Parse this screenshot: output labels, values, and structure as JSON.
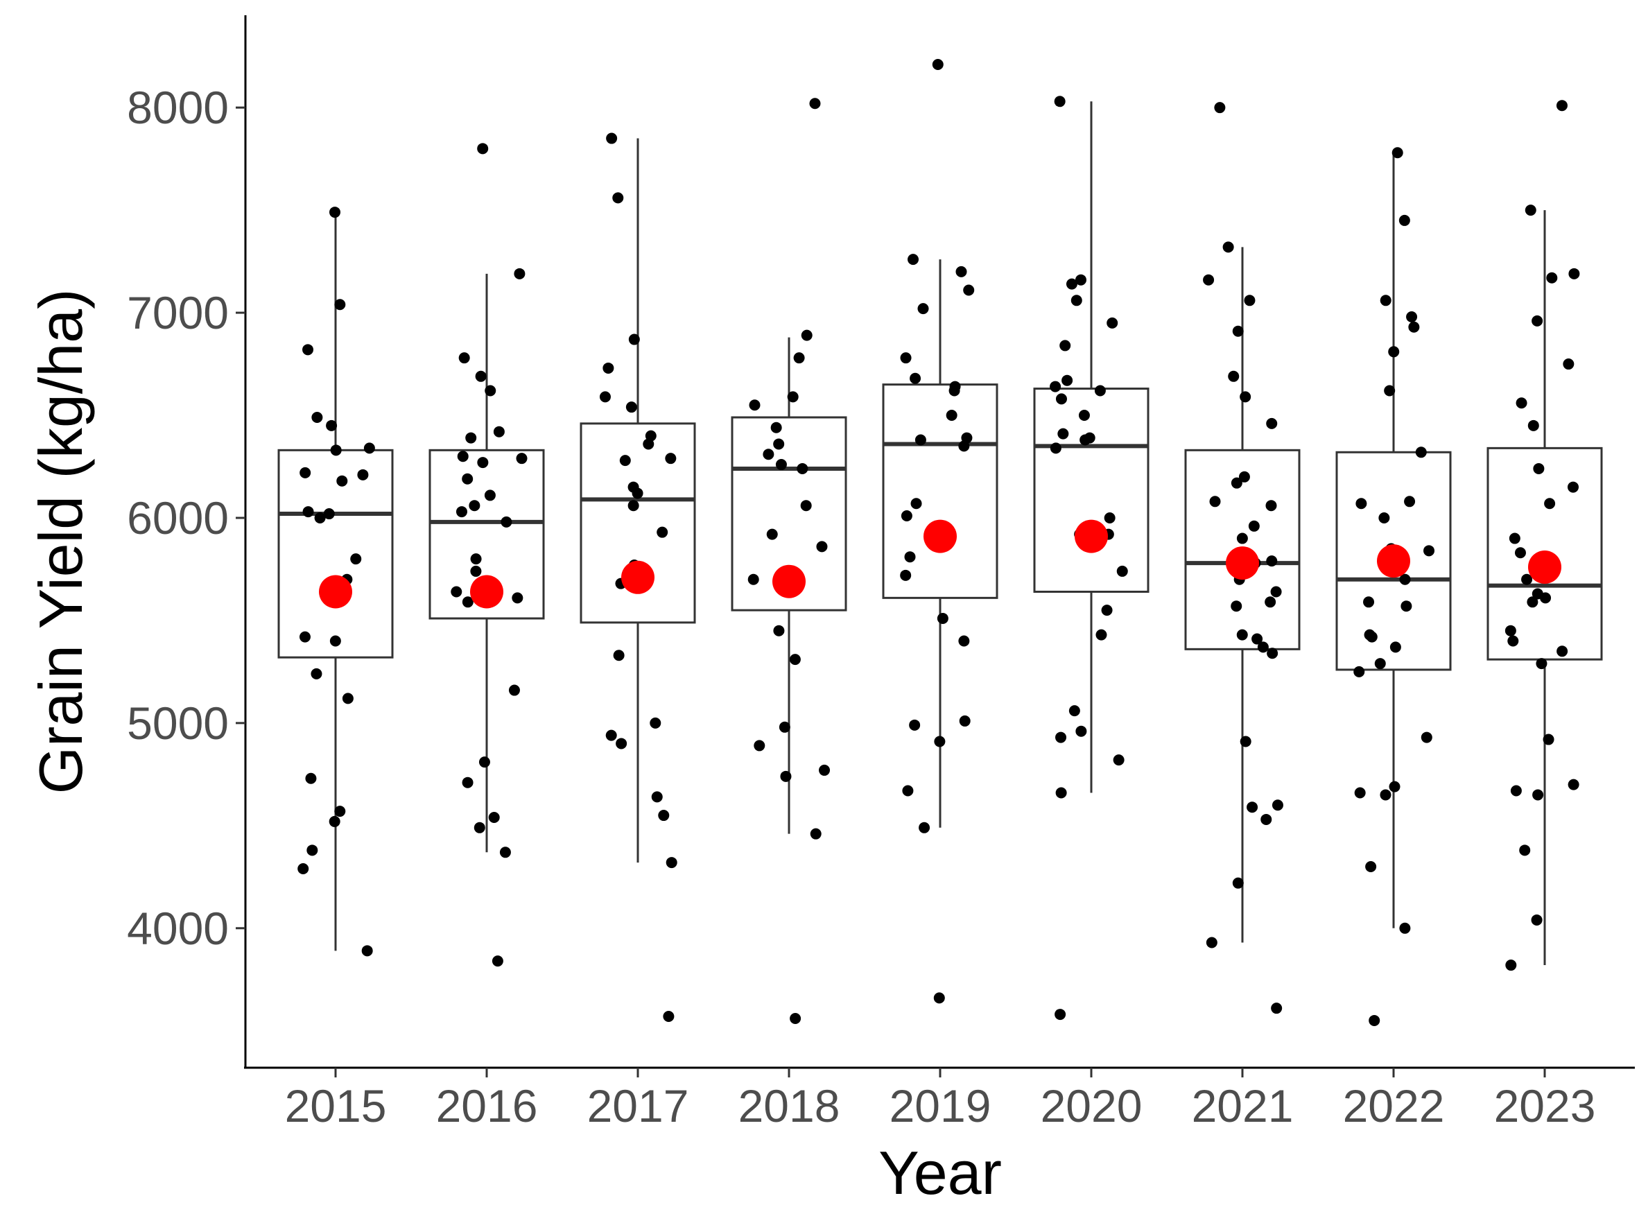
{
  "chart_data": {
    "type": "boxplot",
    "xlabel": "Year",
    "ylabel": "Grain Yield (kg/ha)",
    "ylim": [
      3320,
      8450
    ],
    "yticks": [
      4000,
      5000,
      6000,
      7000,
      8000
    ],
    "grid": false,
    "legend": "none",
    "colors": {
      "points": "#000000",
      "mean": "#ff0000",
      "box": "#333333"
    },
    "categories": [
      "2015",
      "2016",
      "2017",
      "2018",
      "2019",
      "2020",
      "2021",
      "2022",
      "2023"
    ],
    "boxes": [
      {
        "year": "2015",
        "lower_whisker": 3890,
        "q1": 5320,
        "median": 6020,
        "q3": 6330,
        "upper_whisker": 7490,
        "mean": 5640
      },
      {
        "year": "2016",
        "lower_whisker": 4370,
        "q1": 5510,
        "median": 5980,
        "q3": 6330,
        "upper_whisker": 7190,
        "mean": 5640
      },
      {
        "year": "2017",
        "lower_whisker": 4320,
        "q1": 5490,
        "median": 6090,
        "q3": 6460,
        "upper_whisker": 7850,
        "mean": 5710
      },
      {
        "year": "2018",
        "lower_whisker": 4460,
        "q1": 5550,
        "median": 6240,
        "q3": 6490,
        "upper_whisker": 6880,
        "mean": 5690
      },
      {
        "year": "2019",
        "lower_whisker": 4490,
        "q1": 5610,
        "median": 6360,
        "q3": 6650,
        "upper_whisker": 7260,
        "mean": 5910
      },
      {
        "year": "2020",
        "lower_whisker": 4660,
        "q1": 5640,
        "median": 6350,
        "q3": 6630,
        "upper_whisker": 8030,
        "mean": 5910
      },
      {
        "year": "2021",
        "lower_whisker": 3930,
        "q1": 5360,
        "median": 5780,
        "q3": 6330,
        "upper_whisker": 7320,
        "mean": 5780
      },
      {
        "year": "2022",
        "lower_whisker": 4000,
        "q1": 5260,
        "median": 5700,
        "q3": 6320,
        "upper_whisker": 7780,
        "mean": 5790
      },
      {
        "year": "2023",
        "lower_whisker": 3820,
        "q1": 5310,
        "median": 5670,
        "q3": 6340,
        "upper_whisker": 7500,
        "mean": 5760
      }
    ],
    "points": [
      {
        "year": "2015",
        "values": [
          7490,
          7040,
          6820,
          6490,
          6450,
          6330,
          6220,
          6210,
          6180,
          6020,
          6000,
          5800,
          5700,
          5420,
          5400,
          5240,
          5120,
          4730,
          4570,
          4520,
          4380,
          4290,
          3890,
          6340,
          6030
        ]
      },
      {
        "year": "2016",
        "values": [
          7800,
          7190,
          6780,
          6690,
          6620,
          6420,
          6390,
          6300,
          6290,
          6270,
          6190,
          6110,
          6060,
          6030,
          5980,
          5800,
          5740,
          5640,
          5610,
          5590,
          5160,
          4810,
          4710,
          4540,
          4490,
          4370,
          3840
        ]
      },
      {
        "year": "2017",
        "values": [
          7850,
          7560,
          6870,
          6730,
          6590,
          6540,
          6400,
          6360,
          6290,
          6280,
          6150,
          6120,
          6060,
          5930,
          5770,
          5700,
          5680,
          5330,
          5000,
          4940,
          4900,
          4640,
          4550,
          4320,
          3570
        ]
      },
      {
        "year": "2018",
        "values": [
          8020,
          6890,
          6780,
          6590,
          6550,
          6440,
          6360,
          6310,
          6260,
          6240,
          6060,
          5920,
          5860,
          5700,
          5450,
          5310,
          4980,
          4890,
          4770,
          4740,
          4460,
          3560
        ]
      },
      {
        "year": "2019",
        "values": [
          8210,
          7260,
          7200,
          7110,
          7020,
          6780,
          6680,
          6640,
          6620,
          6500,
          6390,
          6380,
          6350,
          6070,
          6010,
          5810,
          5720,
          5510,
          5400,
          5010,
          4990,
          4910,
          4670,
          4490,
          3660
        ]
      },
      {
        "year": "2020",
        "values": [
          8030,
          7160,
          7140,
          7060,
          6950,
          6840,
          6670,
          6640,
          6620,
          6580,
          6500,
          6410,
          6390,
          6380,
          6340,
          6000,
          5940,
          5920,
          5920,
          5740,
          5550,
          5430,
          5060,
          4960,
          4930,
          4820,
          4660,
          3580
        ]
      },
      {
        "year": "2021",
        "values": [
          8000,
          7320,
          7160,
          7060,
          6910,
          6690,
          6590,
          6460,
          6200,
          6170,
          6080,
          6060,
          5960,
          5900,
          5790,
          5780,
          5700,
          5640,
          5590,
          5570,
          5430,
          5410,
          5370,
          5340,
          4910,
          4600,
          4590,
          4530,
          4220,
          3930,
          3610
        ]
      },
      {
        "year": "2022",
        "values": [
          7780,
          7450,
          7060,
          6980,
          6930,
          6810,
          6620,
          6320,
          6080,
          6070,
          6000,
          5850,
          5840,
          5700,
          5590,
          5570,
          5430,
          5420,
          5370,
          5290,
          5250,
          4930,
          4690,
          4660,
          4650,
          4300,
          4000,
          3550
        ]
      },
      {
        "year": "2023",
        "values": [
          8010,
          7500,
          7190,
          7170,
          6960,
          6750,
          6560,
          6450,
          6240,
          6150,
          6070,
          5900,
          5830,
          5760,
          5700,
          5630,
          5610,
          5590,
          5450,
          5400,
          5350,
          5290,
          4920,
          4700,
          4670,
          4650,
          4380,
          4040,
          3820
        ]
      }
    ]
  }
}
